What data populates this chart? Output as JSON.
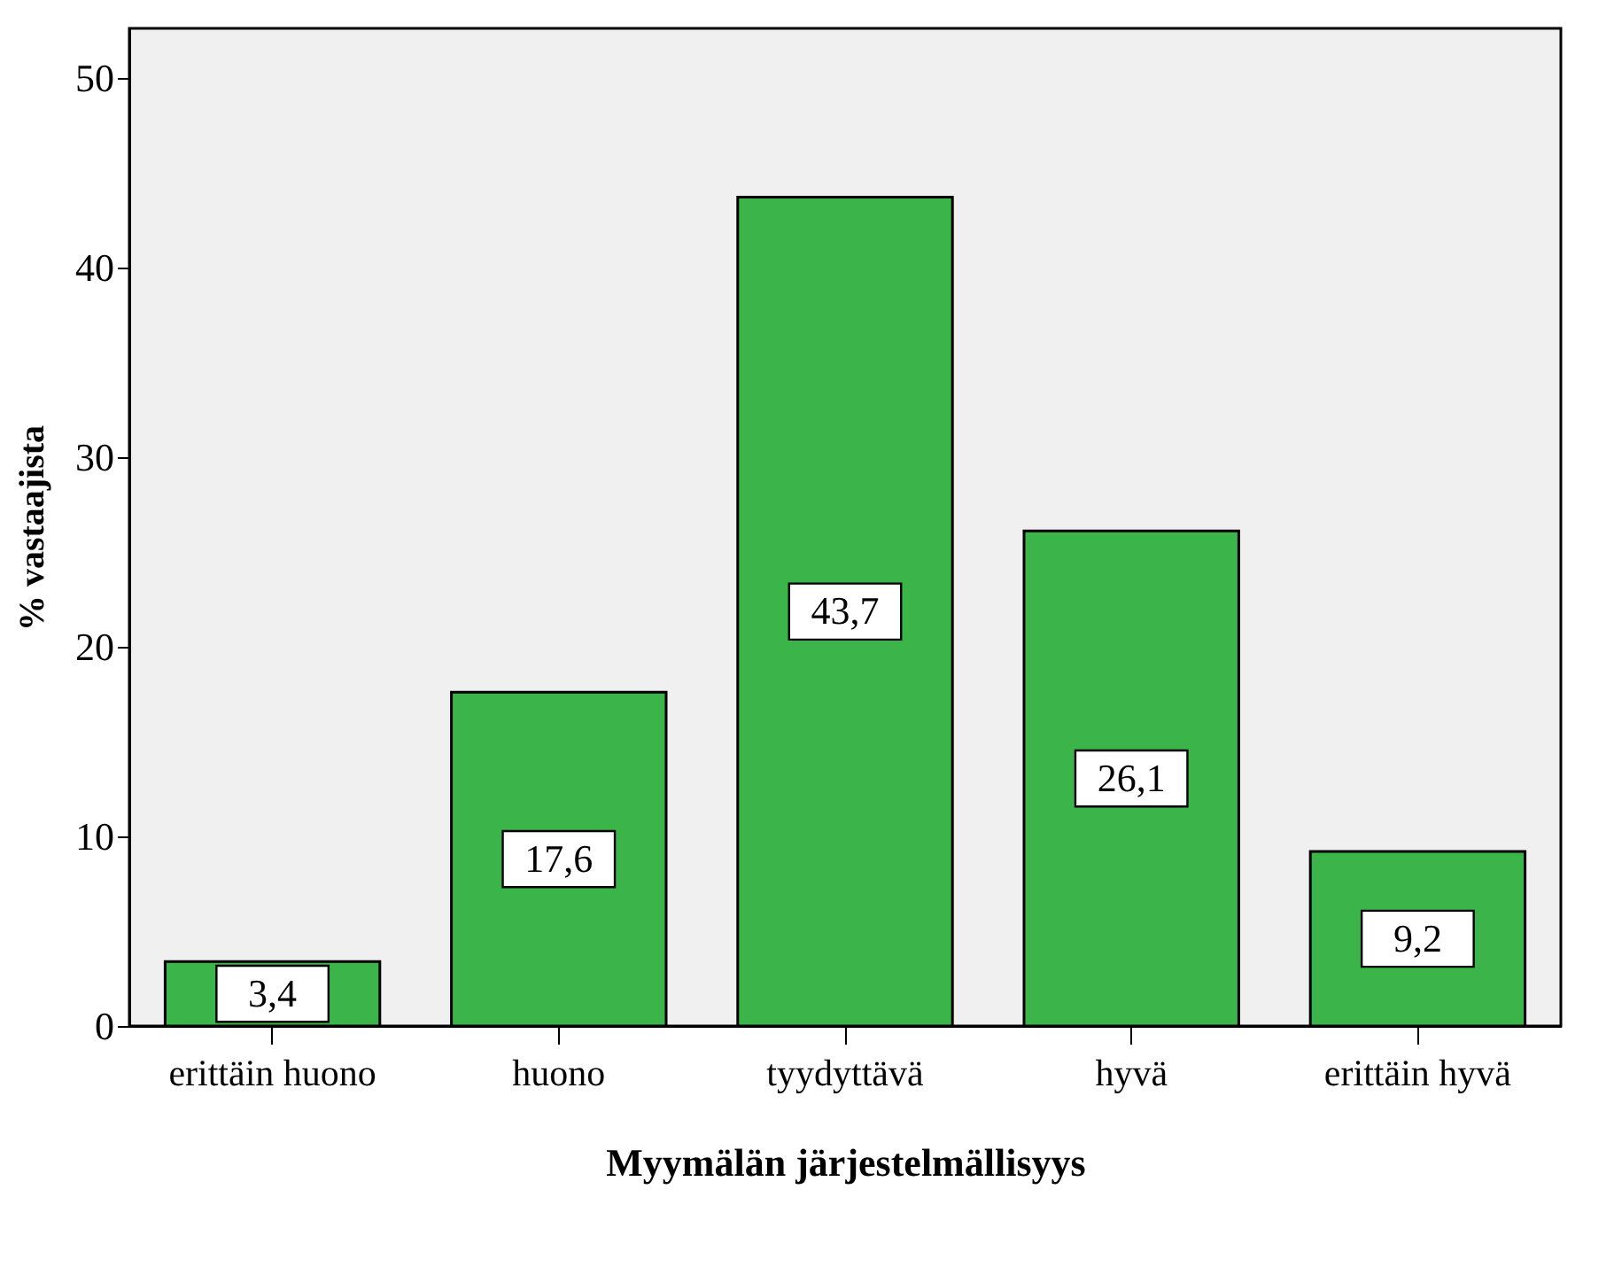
{
  "chart_data": {
    "type": "bar",
    "xlabel": "Myymälän järjestelmällisyys",
    "ylabel": "% vastaajista",
    "categories": [
      "erittäin huono",
      "huono",
      "tyydyttävä",
      "hyvä",
      "erittäin hyvä"
    ],
    "values": [
      3.4,
      17.6,
      43.7,
      26.1,
      9.2
    ],
    "value_labels": [
      "3,4",
      "17,6",
      "43,7",
      "26,1",
      "9,2"
    ],
    "color": "#3bb44a",
    "ylim": [
      0,
      52.6
    ],
    "yticks": [
      0,
      10,
      20,
      30,
      40,
      50
    ]
  }
}
